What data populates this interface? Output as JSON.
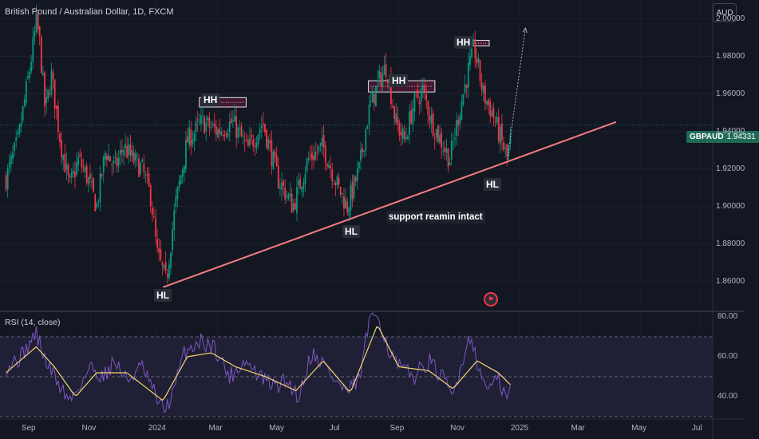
{
  "header": {
    "title": "British Pound / Australian Dollar, 1D, FXCM",
    "currency_button": "AUD"
  },
  "price_tag": {
    "symbol": "GBPAUD",
    "value": "1.94331"
  },
  "rsi_panel": {
    "title": "RSI (14, close)"
  },
  "annotations": {
    "hh1": "HH",
    "hh2": "HH",
    "hh3": "HH",
    "hl1": "HL",
    "hl2": "HL",
    "hl3": "HL",
    "note": "support reamin intact"
  },
  "colors": {
    "up": "#089981",
    "down": "#f23645",
    "trendline": "#f77c80",
    "rsi_line": "#7e57c2",
    "rsi_ma": "#f5d76e",
    "background": "#131722"
  },
  "icons": {
    "flag": "earnings-flag-icon"
  },
  "chart_data": [
    {
      "type": "candlestick",
      "title": "British Pound / Australian Dollar, 1D, FXCM",
      "symbol": "GBPAUD",
      "ylim": [
        1.845,
        2.01
      ],
      "y_ticks": [
        "2.00000",
        "1.98000",
        "1.96000",
        "1.94000",
        "1.92000",
        "1.90000",
        "1.88000",
        "1.86000"
      ],
      "x_ticks": [
        "Sep",
        "Nov",
        "2024",
        "Mar",
        "May",
        "Jul",
        "Sep",
        "Nov",
        "2025",
        "Mar",
        "May",
        "Jul"
      ],
      "last_price": 1.94331,
      "x_range": [
        -0.2,
        23.4
      ],
      "x_tick_positions": [
        0.8,
        2.8,
        5,
        7,
        9,
        11,
        13,
        15,
        17,
        19,
        21,
        23
      ],
      "close_path": [
        [
          0.0,
          1.915
        ],
        [
          0.4,
          1.935
        ],
        [
          0.8,
          1.975
        ],
        [
          1.0,
          1.998
        ],
        [
          1.1,
          1.99
        ],
        [
          1.3,
          1.95
        ],
        [
          1.5,
          1.97
        ],
        [
          1.8,
          1.935
        ],
        [
          2.1,
          1.91
        ],
        [
          2.4,
          1.925
        ],
        [
          2.7,
          1.915
        ],
        [
          3.0,
          1.9
        ],
        [
          3.3,
          1.93
        ],
        [
          3.6,
          1.92
        ],
        [
          3.9,
          1.932
        ],
        [
          4.2,
          1.925
        ],
        [
          4.5,
          1.92
        ],
        [
          4.8,
          1.905
        ],
        [
          5.0,
          1.875
        ],
        [
          5.3,
          1.86
        ],
        [
          5.6,
          1.9
        ],
        [
          6.0,
          1.935
        ],
        [
          6.5,
          1.945
        ],
        [
          7.0,
          1.94
        ],
        [
          7.5,
          1.945
        ],
        [
          8.0,
          1.93
        ],
        [
          8.5,
          1.945
        ],
        [
          9.0,
          1.915
        ],
        [
          9.5,
          1.9
        ],
        [
          10.0,
          1.925
        ],
        [
          10.5,
          1.932
        ],
        [
          11.0,
          1.91
        ],
        [
          11.3,
          1.9
        ],
        [
          11.7,
          1.92
        ],
        [
          12.0,
          1.95
        ],
        [
          12.3,
          1.965
        ],
        [
          12.6,
          1.975
        ],
        [
          12.9,
          1.945
        ],
        [
          13.2,
          1.935
        ],
        [
          13.5,
          1.955
        ],
        [
          13.8,
          1.962
        ],
        [
          14.1,
          1.945
        ],
        [
          14.4,
          1.935
        ],
        [
          14.7,
          1.925
        ],
        [
          15.0,
          1.95
        ],
        [
          15.3,
          1.972
        ],
        [
          15.5,
          1.985
        ],
        [
          15.8,
          1.96
        ],
        [
          16.1,
          1.95
        ],
        [
          16.4,
          1.935
        ],
        [
          16.6,
          1.925
        ],
        [
          16.7,
          1.935
        ]
      ],
      "annotations": [
        {
          "label": "HH",
          "x": 6.9,
          "y": 1.957
        },
        {
          "label": "HH",
          "x": 13.0,
          "y": 1.966
        },
        {
          "label": "HH",
          "x": 15.4,
          "y": 1.987
        },
        {
          "label": "HL",
          "x": 5.3,
          "y": 1.857
        },
        {
          "label": "HL",
          "x": 11.7,
          "y": 1.895
        },
        {
          "label": "HL",
          "x": 16.5,
          "y": 1.924
        }
      ],
      "trendline": {
        "from": [
          5.2,
          1.857
        ],
        "to": [
          20.2,
          1.945
        ]
      },
      "projection": {
        "from": [
          16.6,
          1.925
        ],
        "to": [
          17.2,
          1.995
        ]
      },
      "resistance_boxes": [
        {
          "x0": 6.4,
          "x1": 7.95,
          "y0": 1.953,
          "y1": 1.958
        },
        {
          "x0": 12.0,
          "x1": 14.2,
          "y0": 1.961,
          "y1": 1.967
        },
        {
          "x0": 15.0,
          "x1": 16.0,
          "y0": 1.9855,
          "y1": 1.9885
        }
      ],
      "markers": [
        {
          "label": "earnings-flag",
          "x": 16.5,
          "y": 1.85
        }
      ]
    },
    {
      "type": "line",
      "title": "RSI (14, close)",
      "ylim": [
        30,
        82
      ],
      "y_ticks": [
        "80.00",
        "60.00",
        "40.00"
      ],
      "levels": [
        70,
        50,
        30
      ],
      "series": [
        {
          "name": "RSI",
          "values": [
            [
              0,
              55
            ],
            [
              0.5,
              60
            ],
            [
              1,
              72
            ],
            [
              1.3,
              58
            ],
            [
              1.8,
              45
            ],
            [
              2.1,
              38
            ],
            [
              2.4,
              45
            ],
            [
              2.8,
              55
            ],
            [
              3.2,
              50
            ],
            [
              3.6,
              58
            ],
            [
              4.0,
              48
            ],
            [
              4.5,
              55
            ],
            [
              4.9,
              42
            ],
            [
              5.2,
              33
            ],
            [
              5.5,
              40
            ],
            [
              5.9,
              62
            ],
            [
              6.4,
              68
            ],
            [
              6.9,
              65
            ],
            [
              7.4,
              50
            ],
            [
              7.9,
              58
            ],
            [
              8.4,
              50
            ],
            [
              8.9,
              45
            ],
            [
              9.3,
              48
            ],
            [
              9.7,
              40
            ],
            [
              10.1,
              62
            ],
            [
              10.5,
              57
            ],
            [
              10.9,
              48
            ],
            [
              11.3,
              42
            ],
            [
              11.7,
              48
            ],
            [
              12.0,
              76
            ],
            [
              12.3,
              82
            ],
            [
              12.7,
              62
            ],
            [
              13.0,
              55
            ],
            [
              13.5,
              50
            ],
            [
              14.0,
              58
            ],
            [
              14.5,
              48
            ],
            [
              14.8,
              40
            ],
            [
              15.1,
              58
            ],
            [
              15.4,
              72
            ],
            [
              15.7,
              50
            ],
            [
              16.0,
              45
            ],
            [
              16.3,
              48
            ],
            [
              16.6,
              38
            ],
            [
              16.7,
              45
            ]
          ]
        },
        {
          "name": "RSI-based MA",
          "values": [
            [
              0,
              52
            ],
            [
              1,
              65
            ],
            [
              1.6,
              55
            ],
            [
              2.3,
              40
            ],
            [
              3,
              52
            ],
            [
              4,
              52
            ],
            [
              5.2,
              38
            ],
            [
              6,
              60
            ],
            [
              6.8,
              62
            ],
            [
              7.6,
              55
            ],
            [
              8.6,
              50
            ],
            [
              9.6,
              43
            ],
            [
              10.5,
              58
            ],
            [
              11.4,
              42
            ],
            [
              12.3,
              76
            ],
            [
              13.0,
              55
            ],
            [
              14.0,
              53
            ],
            [
              14.8,
              44
            ],
            [
              15.6,
              58
            ],
            [
              16.3,
              52
            ],
            [
              16.7,
              46
            ]
          ]
        }
      ]
    }
  ]
}
